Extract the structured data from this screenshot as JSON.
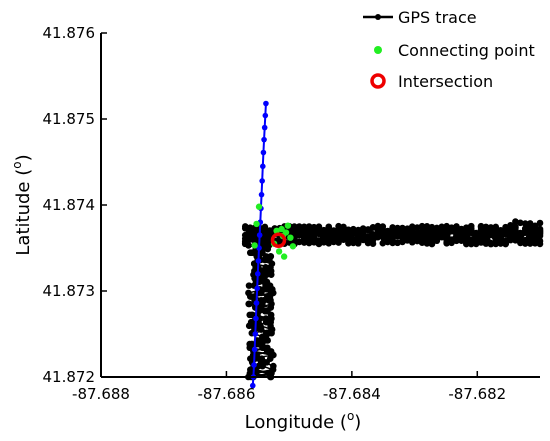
{
  "chart_data": {
    "type": "scatter",
    "xlabel": "Longitude",
    "xlabel_sup": "o",
    "ylabel": "Latitude",
    "ylabel_sup": "o",
    "xlim": [
      -87.688,
      -87.681
    ],
    "ylim": [
      41.872,
      41.876
    ],
    "x_ticks": [
      "-87.688",
      "-87.686",
      "-87.684",
      "-87.682"
    ],
    "x_tick_values": [
      -87.688,
      -87.686,
      -87.684,
      -87.682
    ],
    "y_ticks": [
      "41.872",
      "41.873",
      "41.874",
      "41.875",
      "41.876"
    ],
    "y_tick_values": [
      41.872,
      41.873,
      41.874,
      41.875,
      41.876
    ],
    "grid": false,
    "legend_position": "top-right",
    "series": [
      {
        "name": "GPS trace",
        "color": "#000000",
        "marker": "dot-line",
        "segments": [
          {
            "x_range": [
              -87.6857,
              -87.6852
            ],
            "y_range": [
              41.872,
              41.8737
            ],
            "comment": "vertical band"
          },
          {
            "x_range": [
              -87.6857,
              -87.681
            ],
            "y_range": [
              41.8735,
              41.8738
            ],
            "comment": "horizontal band"
          }
        ]
      },
      {
        "name": "",
        "color": "#0000ff",
        "marker": "dot-line",
        "x": [
          -87.68537,
          -87.68538,
          -87.68539,
          -87.6854,
          -87.68541,
          -87.68542,
          -87.68543,
          -87.68544,
          -87.68545,
          -87.68546,
          -87.68547,
          -87.68548,
          -87.68549,
          -87.6855,
          -87.68551,
          -87.68552,
          -87.68553,
          -87.68554,
          -87.68555,
          -87.68556,
          -87.68557,
          -87.68558
        ],
        "y": [
          41.87518,
          41.87504,
          41.8749,
          41.87476,
          41.87461,
          41.87445,
          41.87428,
          41.87412,
          41.87396,
          41.8738,
          41.87365,
          41.8735,
          41.87335,
          41.8732,
          41.87303,
          41.87286,
          41.87268,
          41.8725,
          41.87232,
          41.87214,
          41.872,
          41.8719
        ]
      },
      {
        "name": "Connecting point",
        "color": "#22ee22",
        "marker": "dot",
        "x": [
          -87.68548,
          -87.68552,
          -87.68555,
          -87.6852,
          -87.68512,
          -87.68505,
          -87.68498,
          -87.68516,
          -87.68508,
          -87.68494,
          -87.68524,
          -87.68502,
          -87.6851
        ],
        "y": [
          41.87398,
          41.87378,
          41.87353,
          41.8737,
          41.87372,
          41.87368,
          41.87362,
          41.87346,
          41.8734,
          41.87352,
          41.87355,
          41.87376,
          41.87364
        ]
      },
      {
        "name": "Intersection",
        "color": "#ee0000",
        "marker": "ring",
        "x": [
          -87.68517
        ],
        "y": [
          41.87359
        ]
      }
    ]
  }
}
